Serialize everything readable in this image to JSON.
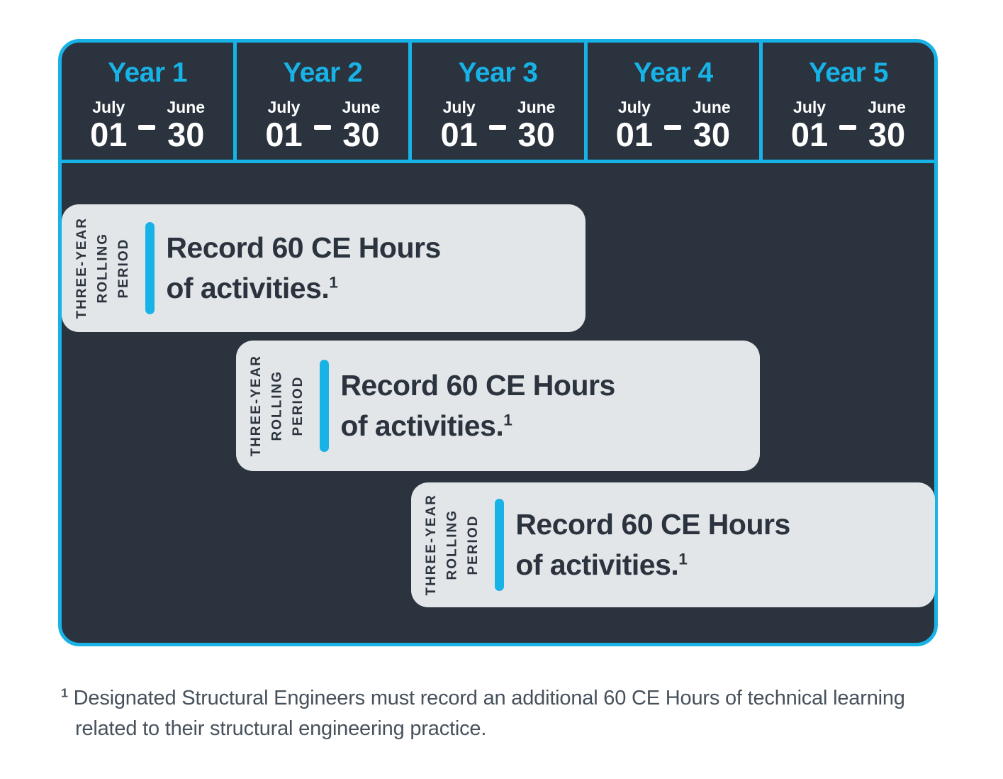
{
  "colors": {
    "navy": "#2b333e",
    "cyan": "#18b3e6",
    "card_bg": "#e3e6e8",
    "white": "#ffffff"
  },
  "header": {
    "years": [
      {
        "label": "Year 1",
        "start_month": "July",
        "start_day": "01",
        "end_month": "June",
        "end_day": "30"
      },
      {
        "label": "Year 2",
        "start_month": "July",
        "start_day": "01",
        "end_month": "June",
        "end_day": "30"
      },
      {
        "label": "Year 3",
        "start_month": "July",
        "start_day": "01",
        "end_month": "June",
        "end_day": "30"
      },
      {
        "label": "Year 4",
        "start_month": "July",
        "start_day": "01",
        "end_month": "June",
        "end_day": "30"
      },
      {
        "label": "Year 5",
        "start_month": "July",
        "start_day": "01",
        "end_month": "June",
        "end_day": "30"
      }
    ]
  },
  "cards": [
    {
      "side_label": [
        "THREE-YEAR",
        "ROLLING",
        "PERIOD"
      ],
      "line1": "Record 60 CE Hours",
      "line2": "of activities.",
      "footnote_ref": "1"
    },
    {
      "side_label": [
        "THREE-YEAR",
        "ROLLING",
        "PERIOD"
      ],
      "line1": "Record 60 CE Hours",
      "line2": "of activities.",
      "footnote_ref": "1"
    },
    {
      "side_label": [
        "THREE-YEAR",
        "ROLLING",
        "PERIOD"
      ],
      "line1": "Record 60 CE Hours",
      "line2": "of activities.",
      "footnote_ref": "1"
    }
  ],
  "footnote": {
    "marker": "1",
    "text": "Designated Structural Engineers must record an additional 60 CE Hours of technical learning related to their structural engineering practice."
  }
}
